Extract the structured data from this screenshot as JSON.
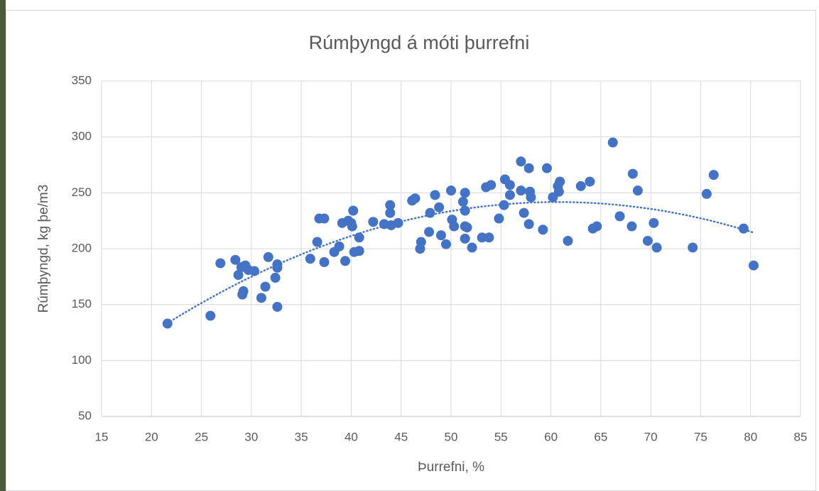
{
  "chart_data": {
    "type": "scatter",
    "title": "Rúmþyngd á móti þurrefni",
    "x_label": "Þurrefni, %",
    "y_label": "Rúmþyngd, kg þe/m3",
    "color": "#4472c4",
    "grid": true,
    "trendline": "polynomial",
    "xlim": [
      15,
      85
    ],
    "xticks": [
      15,
      20,
      25,
      30,
      35,
      40,
      45,
      50,
      55,
      60,
      65,
      70,
      75,
      80,
      85
    ],
    "ylim": [
      50,
      350
    ],
    "yticks": [
      50,
      100,
      150,
      200,
      250,
      300,
      350
    ],
    "x": [
      21.6,
      25.9,
      26.9,
      28.4,
      28.7,
      29.0,
      29.4,
      29.2,
      29.1,
      29.7,
      30.3,
      31.0,
      31.4,
      31.7,
      32.4,
      32.6,
      32.6,
      32.6,
      35.9,
      36.6,
      36.8,
      37.3,
      37.3,
      38.3,
      38.8,
      39.1,
      39.4,
      39.7,
      40.0,
      40.2,
      40.1,
      40.3,
      40.8,
      40.8,
      42.2,
      43.3,
      43.9,
      43.9,
      44.0,
      44.7,
      46.1,
      46.4,
      46.9,
      47.0,
      47.8,
      47.9,
      48.4,
      48.8,
      49.0,
      49.5,
      50.0,
      50.1,
      50.3,
      51.4,
      51.2,
      51.4,
      51.4,
      51.6,
      51.4,
      52.1,
      53.1,
      53.5,
      53.8,
      54.0,
      54.8,
      55.3,
      55.4,
      55.9,
      55.9,
      57.0,
      57.0,
      57.3,
      57.8,
      57.8,
      57.9,
      58.0,
      59.2,
      59.6,
      60.2,
      60.7,
      60.9,
      60.8,
      61.7,
      63.0,
      63.9,
      64.2,
      64.6,
      66.2,
      66.9,
      68.1,
      68.2,
      68.7,
      69.7,
      70.3,
      70.6,
      74.2,
      75.6,
      76.3,
      79.3,
      80.3
    ],
    "values": [
      133,
      140,
      187,
      190,
      176.5,
      183.5,
      185,
      162,
      159,
      181,
      180,
      156,
      166,
      192.5,
      174,
      186,
      183,
      148,
      191,
      206,
      227,
      227,
      188,
      197,
      202,
      223,
      189,
      225,
      223,
      234,
      220,
      197,
      198,
      210,
      224,
      222,
      239,
      232,
      221,
      223,
      243,
      245,
      200,
      206,
      215,
      232,
      248,
      237,
      212,
      204,
      252,
      226,
      220,
      250,
      242,
      234,
      220,
      219,
      209,
      201,
      210,
      255,
      210,
      257,
      227,
      239,
      262,
      257,
      248,
      278,
      252,
      232,
      222,
      272,
      251,
      246,
      217,
      272,
      246,
      256,
      260,
      251,
      207,
      256,
      260,
      218,
      220,
      295,
      229,
      220,
      267,
      252,
      207,
      223,
      201,
      201,
      249,
      266,
      218,
      185
    ]
  }
}
